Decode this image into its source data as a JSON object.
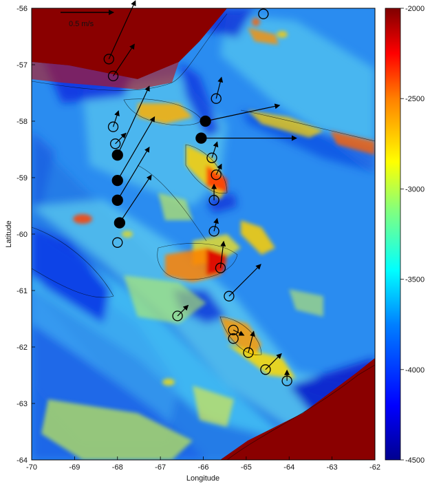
{
  "chart_data": {
    "type": "heatmap",
    "xlabel": "Longitude",
    "ylabel": "Latitude",
    "xlim": [
      -70,
      -62
    ],
    "ylim": [
      -64,
      -56
    ],
    "xticks": [
      -70,
      -69,
      -68,
      -67,
      -66,
      -65,
      -64,
      -63,
      -62
    ],
    "yticks": [
      -56,
      -57,
      -58,
      -59,
      -60,
      -61,
      -62,
      -63,
      -64
    ],
    "colorbar": {
      "range": [
        -4500,
        -2000
      ],
      "ticks": [
        -2000,
        -2500,
        -3000,
        -3500,
        -4000,
        -4500
      ],
      "colors": [
        "#00008f",
        "#0000ff",
        "#0080ff",
        "#00ffff",
        "#80ff80",
        "#ffff00",
        "#ff8000",
        "#ff0000",
        "#800000"
      ]
    },
    "scale_arrow": {
      "label": "0.5 m/s",
      "u": 0.5,
      "v": 0
    },
    "moorings": [
      {
        "lon": -68.2,
        "lat": -56.9,
        "filled": false
      },
      {
        "lon": -68.1,
        "lat": -57.2,
        "filled": false
      },
      {
        "lon": -65.7,
        "lat": -57.6,
        "filled": false
      },
      {
        "lon": -64.6,
        "lat": -56.1,
        "filled": false
      },
      {
        "lon": -68.1,
        "lat": -58.1,
        "filled": false
      },
      {
        "lon": -68.05,
        "lat": -58.4,
        "filled": false
      },
      {
        "lon": -65.8,
        "lat": -58.65,
        "filled": false
      },
      {
        "lon": -65.7,
        "lat": -58.95,
        "filled": false
      },
      {
        "lon": -65.75,
        "lat": -59.4,
        "filled": false
      },
      {
        "lon": -65.75,
        "lat": -59.95,
        "filled": false
      },
      {
        "lon": -68.0,
        "lat": -60.15,
        "filled": false
      },
      {
        "lon": -65.6,
        "lat": -60.6,
        "filled": false
      },
      {
        "lon": -65.4,
        "lat": -61.1,
        "filled": false
      },
      {
        "lon": -66.6,
        "lat": -61.45,
        "filled": false
      },
      {
        "lon": -65.3,
        "lat": -61.7,
        "filled": false
      },
      {
        "lon": -65.3,
        "lat": -61.85,
        "filled": false
      },
      {
        "lon": -64.95,
        "lat": -62.1,
        "filled": false
      },
      {
        "lon": -64.55,
        "lat": -62.4,
        "filled": false
      },
      {
        "lon": -64.05,
        "lat": -62.6,
        "filled": false
      },
      {
        "lon": -65.95,
        "lat": -58.0,
        "filled": true
      },
      {
        "lon": -66.05,
        "lat": -58.3,
        "filled": true
      },
      {
        "lon": -68.0,
        "lat": -58.6,
        "filled": true
      },
      {
        "lon": -68.0,
        "lat": -59.05,
        "filled": true
      },
      {
        "lon": -68.0,
        "lat": -59.4,
        "filled": true
      },
      {
        "lon": -67.95,
        "lat": -59.8,
        "filled": true
      }
    ],
    "velocity_vectors": [
      {
        "lon": -68.2,
        "lat": -56.9,
        "u": 0.25,
        "v": 0.55
      },
      {
        "lon": -68.1,
        "lat": -57.2,
        "u": 0.2,
        "v": 0.3
      },
      {
        "lon": -65.7,
        "lat": -57.6,
        "u": 0.05,
        "v": 0.2
      },
      {
        "lon": -68.1,
        "lat": -58.1,
        "u": 0.05,
        "v": 0.15
      },
      {
        "lon": -68.05,
        "lat": -58.4,
        "u": 0.1,
        "v": 0.1
      },
      {
        "lon": -65.95,
        "lat": -58.0,
        "u": 0.7,
        "v": 0.15
      },
      {
        "lon": -66.05,
        "lat": -58.3,
        "u": 0.9,
        "v": 0.0
      },
      {
        "lon": -68.0,
        "lat": -58.6,
        "u": 0.3,
        "v": 0.65
      },
      {
        "lon": -68.0,
        "lat": -59.05,
        "u": 0.35,
        "v": 0.6
      },
      {
        "lon": -68.0,
        "lat": -59.4,
        "u": 0.3,
        "v": 0.5
      },
      {
        "lon": -67.95,
        "lat": -59.8,
        "u": 0.3,
        "v": 0.45
      },
      {
        "lon": -65.8,
        "lat": -58.65,
        "u": 0.05,
        "v": 0.15
      },
      {
        "lon": -65.7,
        "lat": -58.95,
        "u": 0.05,
        "v": 0.1
      },
      {
        "lon": -65.75,
        "lat": -59.4,
        "u": 0.0,
        "v": 0.15
      },
      {
        "lon": -65.75,
        "lat": -59.95,
        "u": 0.03,
        "v": 0.12
      },
      {
        "lon": -65.6,
        "lat": -60.6,
        "u": 0.03,
        "v": 0.25
      },
      {
        "lon": -65.4,
        "lat": -61.1,
        "u": 0.3,
        "v": 0.3
      },
      {
        "lon": -66.6,
        "lat": -61.45,
        "u": 0.1,
        "v": 0.1
      },
      {
        "lon": -65.3,
        "lat": -61.7,
        "u": 0.1,
        "v": -0.05
      },
      {
        "lon": -64.95,
        "lat": -62.1,
        "u": 0.05,
        "v": 0.2
      },
      {
        "lon": -64.55,
        "lat": -62.4,
        "u": 0.15,
        "v": 0.15
      },
      {
        "lon": -64.05,
        "lat": -62.6,
        "u": 0.0,
        "v": 0.1
      }
    ]
  }
}
